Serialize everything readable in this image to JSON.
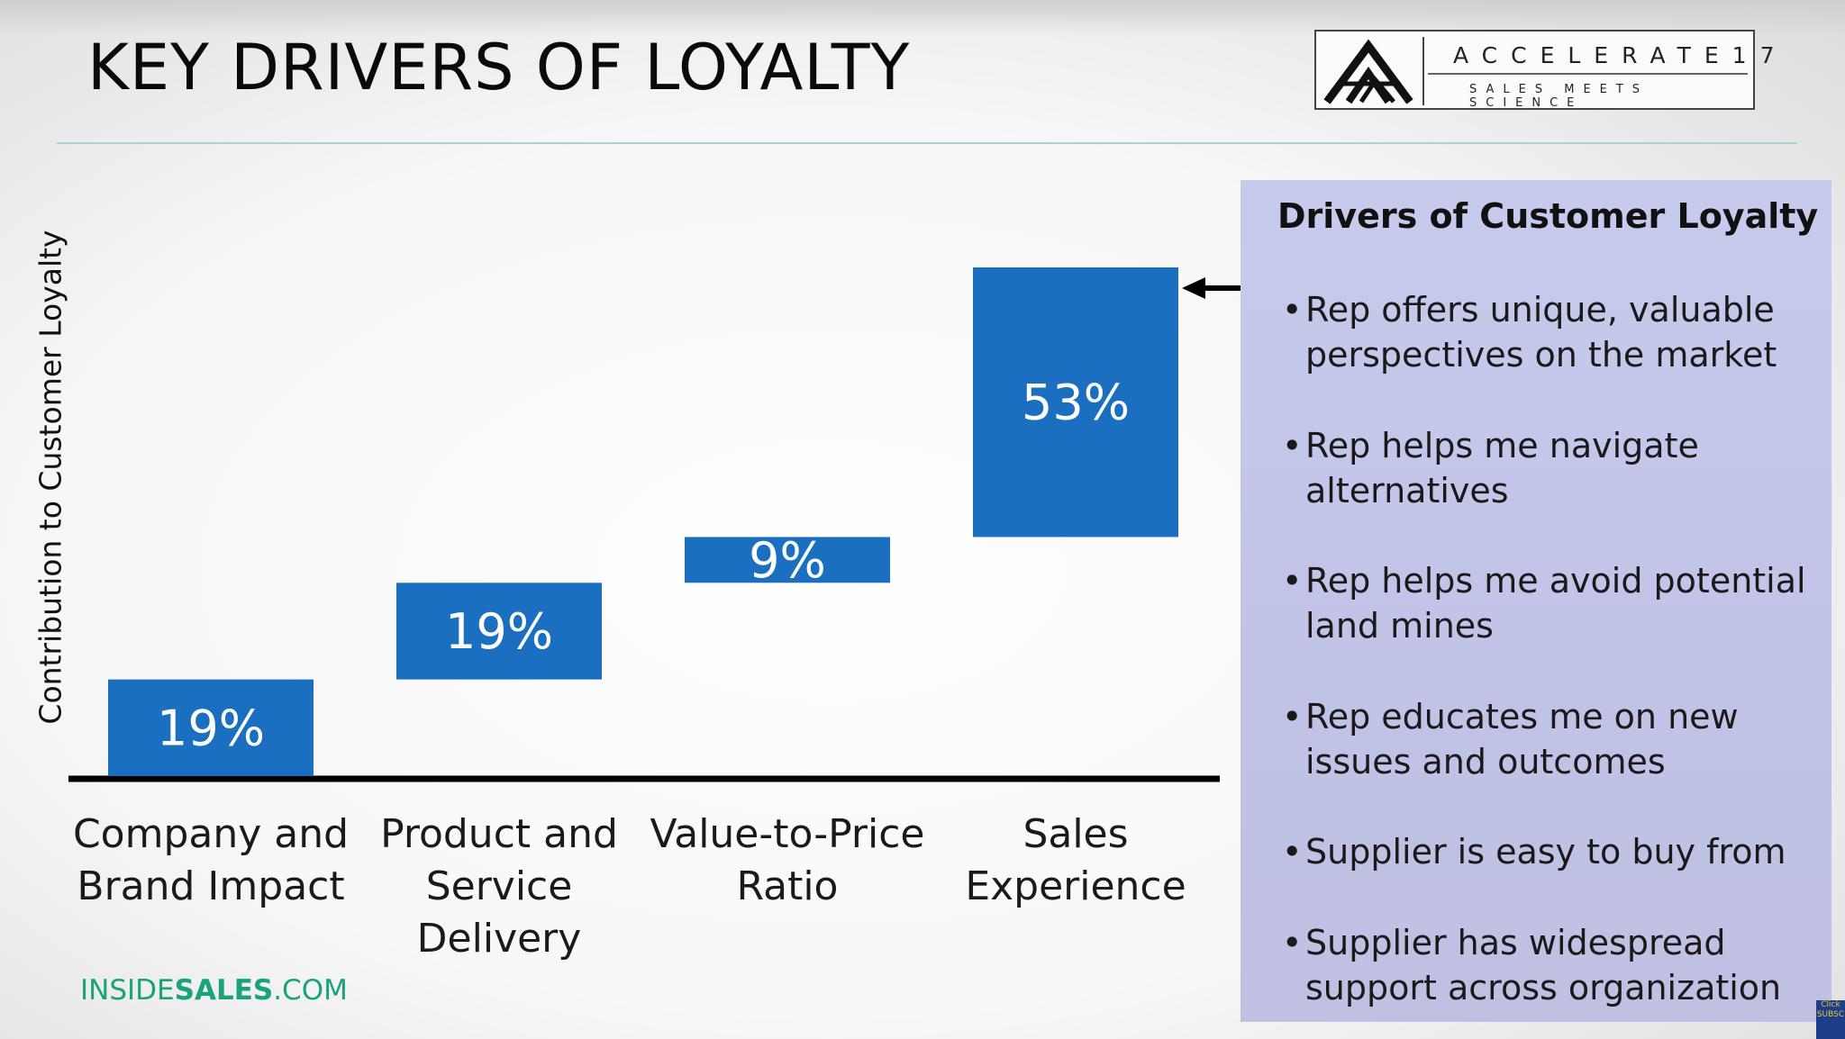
{
  "title": "KEY DRIVERS OF LOYALTY",
  "logo": {
    "wordmark": "ACCELERATE17",
    "tagline": "SALES MEETS SCIENCE"
  },
  "brand": {
    "prefix": "INSIDE",
    "bold": "SALES",
    "suffix": ".COM"
  },
  "colors": {
    "bar": "#1b6fc1",
    "panel": "#c3c6e8",
    "brand": "#1aa37a",
    "rule": "#a7d4cf"
  },
  "chart_data": {
    "type": "bar",
    "subtype": "waterfall",
    "ylabel": "Contribution to Customer Loyalty",
    "categories": [
      "Company and Brand Impact",
      "Product and Service Delivery",
      "Value-to-Price Ratio",
      "Sales Experience"
    ],
    "values": [
      19,
      19,
      9,
      53
    ],
    "data_labels": [
      "19%",
      "19%",
      "9%",
      "53%"
    ],
    "ylim": [
      0,
      100
    ],
    "grid": false
  },
  "panel": {
    "title": "Drivers of Customer Loyalty",
    "bullet_char": "•",
    "items": [
      "Rep offers unique, valuable perspectives on the market",
      "Rep helps me navigate alternatives",
      "Rep helps me avoid potential land mines",
      "Rep educates me on new issues and outcomes",
      "Supplier is easy to buy from",
      "Supplier has widespread support across organization"
    ]
  },
  "corner_badge": {
    "line1": "Click",
    "line2": "SUBSC"
  }
}
